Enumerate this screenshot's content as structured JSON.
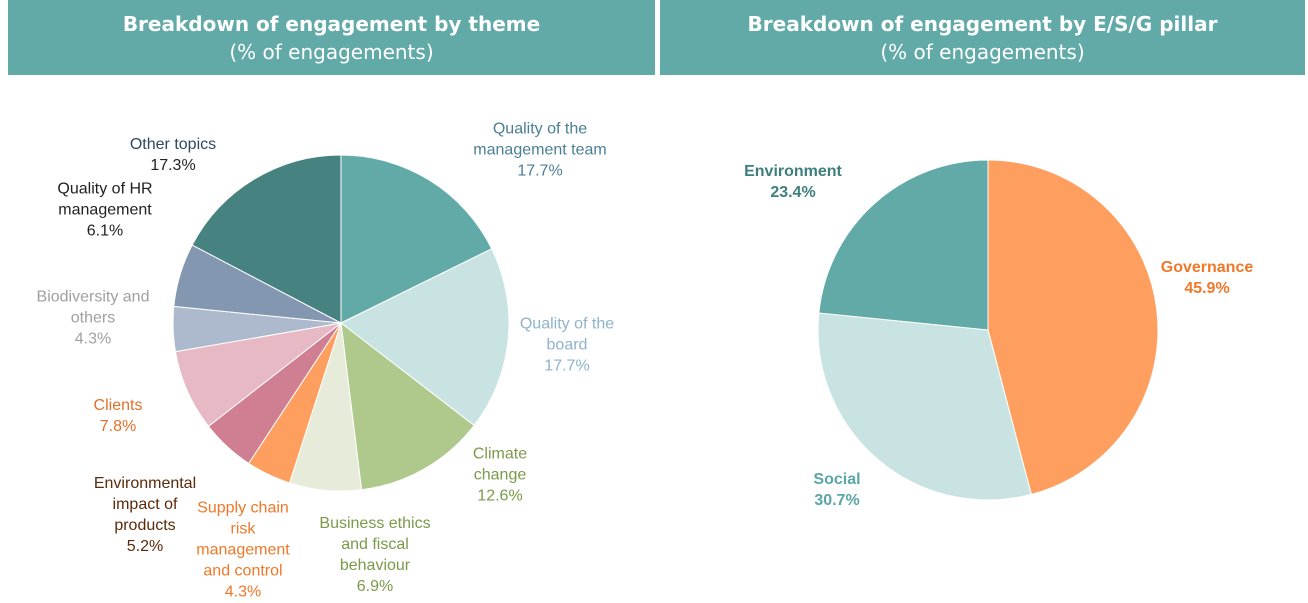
{
  "chart_data": [
    {
      "type": "pie",
      "title": "Breakdown of engagement by theme",
      "subtitle": "(% of engagements)",
      "categories": [
        "Quality of the management team",
        "Quality of the board",
        "Climate change",
        "Business ethics and fiscal behaviour",
        "Supply chain risk management and control",
        "Environmental impact of products",
        "Clients",
        "Biodiversity and others",
        "Quality of HR management",
        "Other topics"
      ],
      "values": [
        17.7,
        17.7,
        12.6,
        6.9,
        4.3,
        5.2,
        7.8,
        4.3,
        6.1,
        17.3
      ],
      "value_labels": [
        "17.7%",
        "17.7%",
        "12.6%",
        "6.9%",
        "4.3%",
        "5.2%",
        "7.8%",
        "4.3%",
        "6.1%",
        "17.3%"
      ],
      "colors": [
        "#62aaa8",
        "#c9e3e3",
        "#aec98b",
        "#e6ecd9",
        "#fe9f5f",
        "#d07f92",
        "#e6b9c4",
        "#adb9cc",
        "#8497b0",
        "#468280"
      ],
      "label_colors": [
        "#4a7f95",
        "#8fb3cc",
        "#7a9a4a",
        "#7a9a4a",
        "#f07828",
        "#5a2a0a",
        "#e0702a",
        "#a0a0a0",
        "#222222",
        "#2e4a5e"
      ]
    },
    {
      "type": "pie",
      "title": "Breakdown of engagement by E/S/G pillar",
      "subtitle": "(% of engagements)",
      "categories": [
        "Governance",
        "Social",
        "Environment"
      ],
      "values": [
        45.9,
        30.7,
        23.4
      ],
      "value_labels": [
        "45.9%",
        "30.7%",
        "23.4%"
      ],
      "colors": [
        "#fe9f5f",
        "#c9e3e3",
        "#62aaa8"
      ],
      "label_colors": [
        "#f07828",
        "#5aa5a5",
        "#3d7f7c"
      ]
    }
  ]
}
